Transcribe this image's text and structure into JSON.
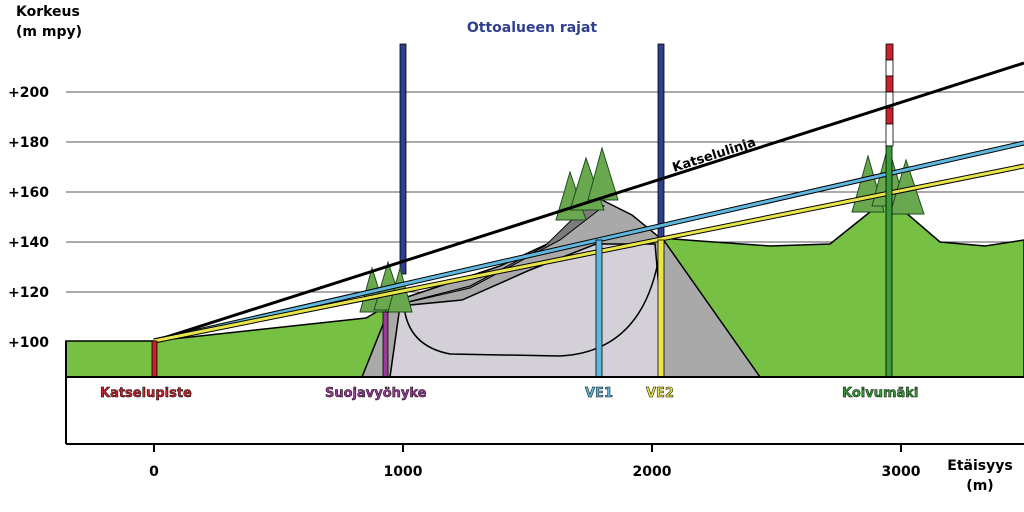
{
  "title": "Ottoalueen rajat",
  "y_axis": {
    "label_line1": "Korkeus",
    "label_line2": "(m mpy)",
    "ticks": [
      "+100",
      "+120",
      "+140",
      "+160",
      "+180",
      "+200"
    ]
  },
  "x_axis": {
    "label_line1": "Etäisyys",
    "label_line2": "(m)",
    "ticks": [
      "0",
      "1000",
      "2000",
      "3000"
    ]
  },
  "lines": {
    "sightline": "Katselulinja"
  },
  "markers": {
    "katselupiste": "Katselupiste",
    "suojavyohyke": "Suojavyöhyke",
    "ve1": "VE1",
    "ve2": "VE2",
    "koivumaki": "Koivumäki"
  },
  "colors": {
    "title": "#2e3f8f",
    "ground": "#76c043",
    "pit": "#a9a9a9",
    "pit_inner": "#d3d0d8",
    "tree": "#6aa84f",
    "katselupiste": "#c8232c",
    "suojavyohyke": "#9b3b97",
    "ve1": "#5fb7e0",
    "ve2": "#e8e54a",
    "koivumaki": "#3a9b3a",
    "boundary": "#2e3f8f"
  }
}
